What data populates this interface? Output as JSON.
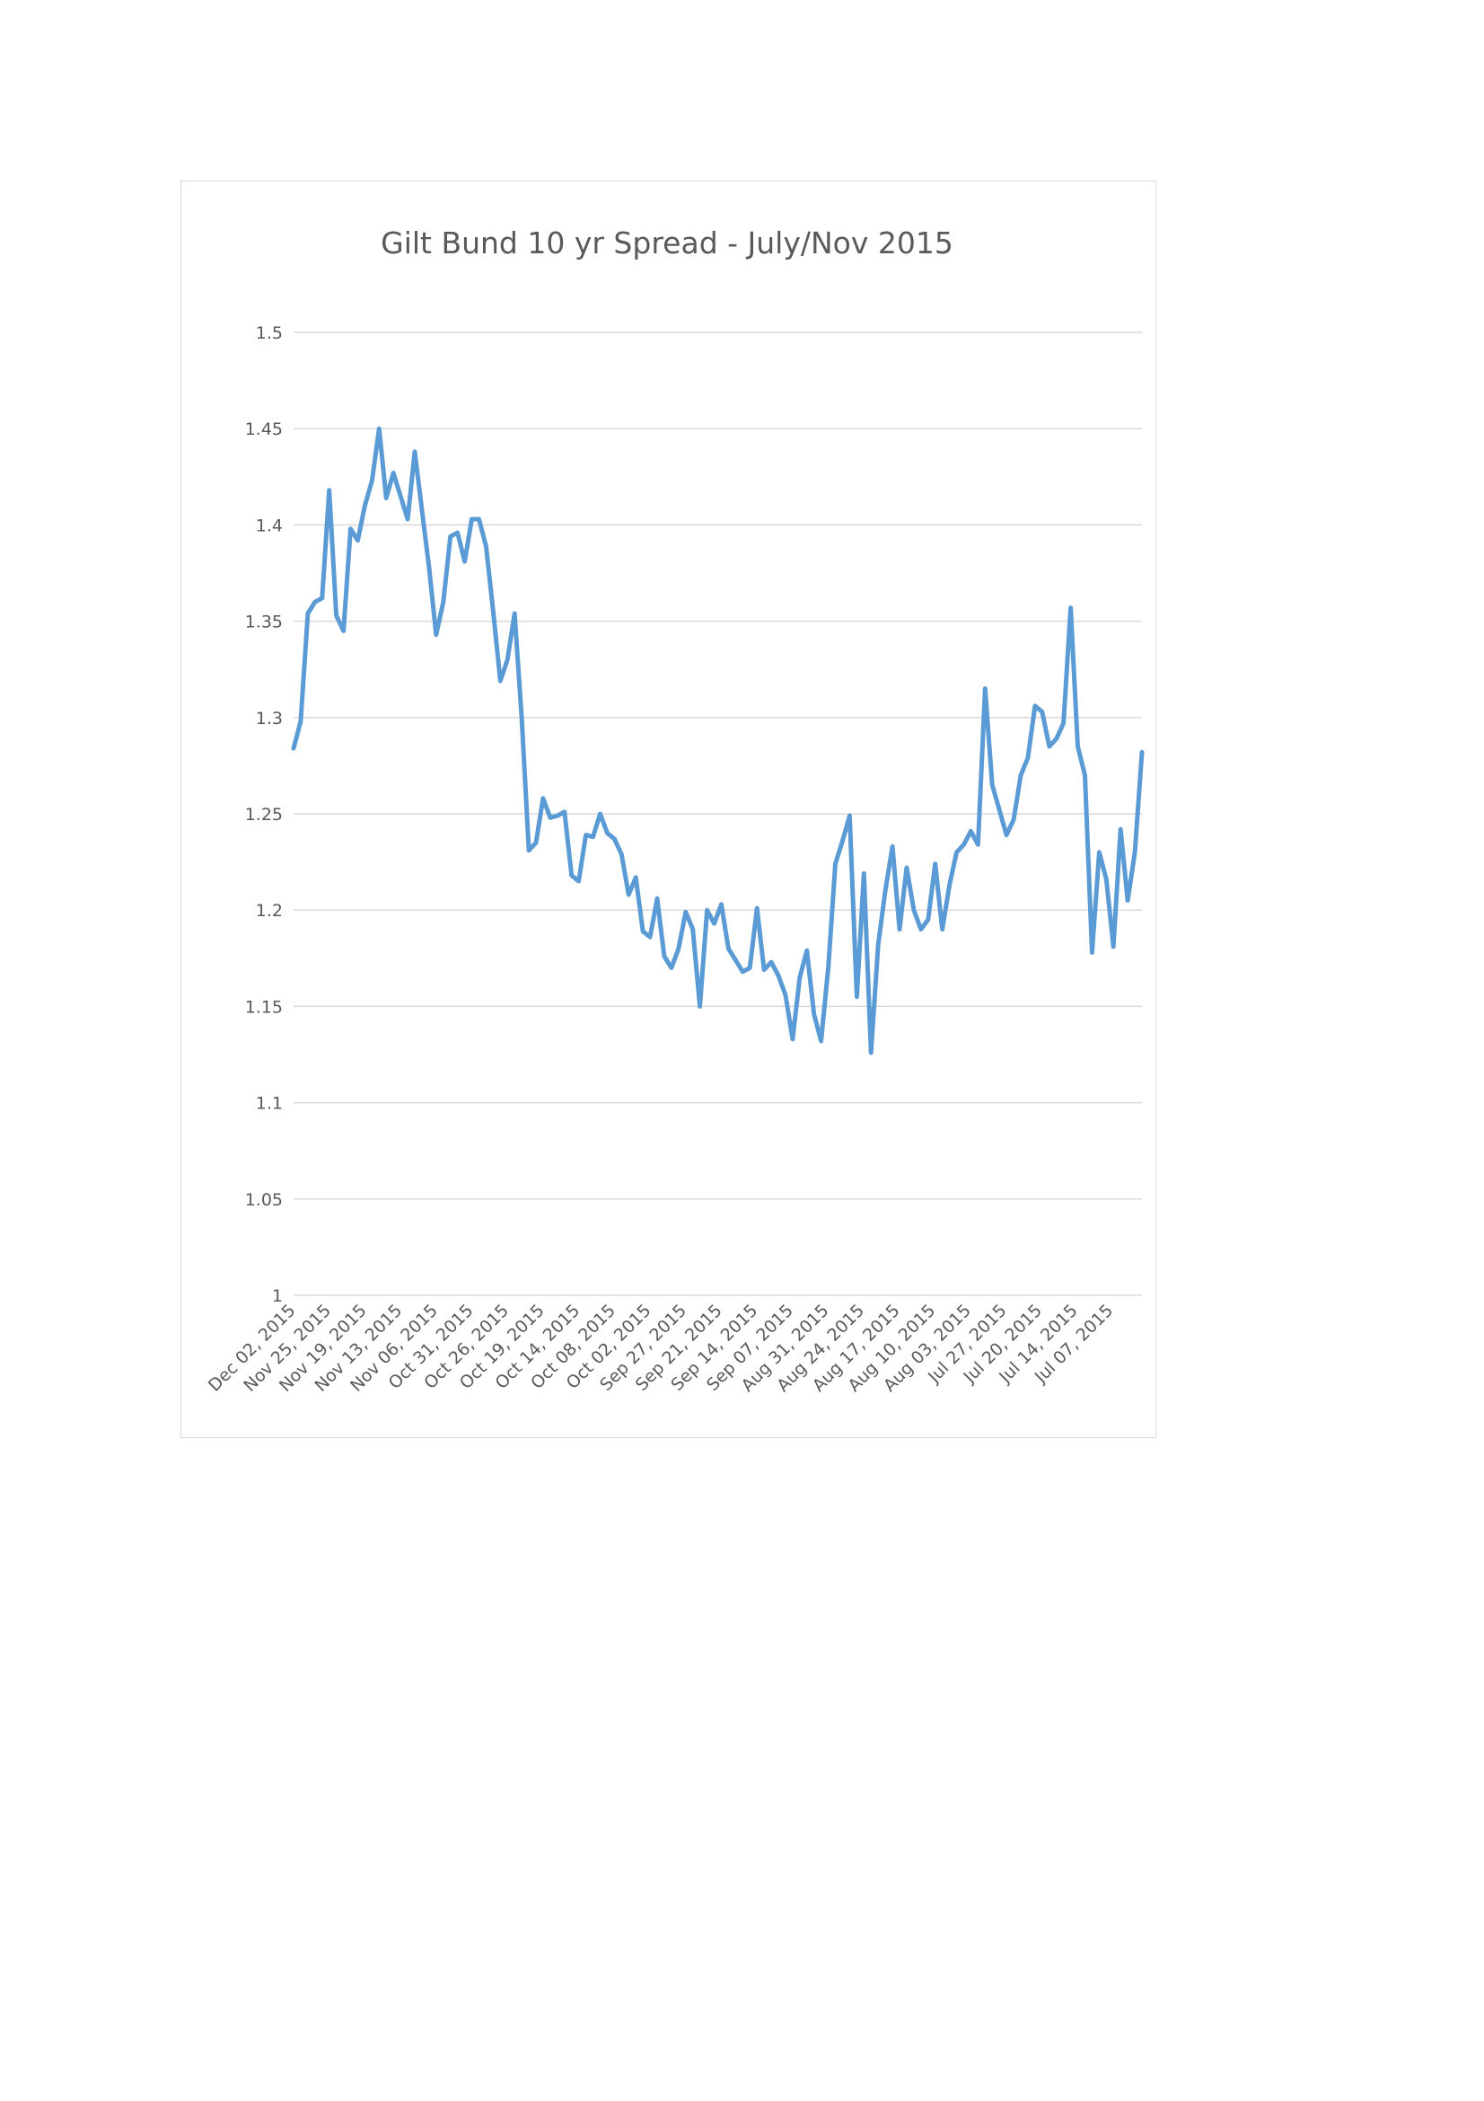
{
  "chart_data": {
    "type": "line",
    "title": "Gilt Bund 10 yr Spread - July/Nov 2015",
    "xlabel": "",
    "ylabel": "",
    "ylim": [
      1,
      1.5
    ],
    "y_ticks": [
      "1",
      "1.05",
      "1.1",
      "1.15",
      "1.2",
      "1.25",
      "1.3",
      "1.35",
      "1.4",
      "1.45",
      "1.5"
    ],
    "x_tick_labels": [
      "Dec 02, 2015",
      "Nov 25, 2015",
      "Nov 19, 2015",
      "Nov 13, 2015",
      "Nov 06, 2015",
      "Oct 31, 2015",
      "Oct 26, 2015",
      "Oct 19, 2015",
      "Oct 14, 2015",
      "Oct 08, 2015",
      "Oct 02, 2015",
      "Sep 27, 2015",
      "Sep 21, 2015",
      "Sep 14, 2015",
      "Sep 07, 2015",
      "Aug 31, 2015",
      "Aug 24, 2015",
      "Aug 17, 2015",
      "Aug 10, 2015",
      "Aug 03, 2015",
      "Jul 27, 2015",
      "Jul 20, 2015",
      "Jul 14, 2015",
      "Jul 07, 2015"
    ],
    "grid": true,
    "legend": "none",
    "series": [
      {
        "color": "#5b9bd5",
        "values": [
          1.284,
          1.298,
          1.354,
          1.36,
          1.362,
          1.418,
          1.353,
          1.345,
          1.398,
          1.392,
          1.41,
          1.423,
          1.45,
          1.414,
          1.427,
          1.415,
          1.403,
          1.438,
          1.408,
          1.378,
          1.343,
          1.36,
          1.394,
          1.396,
          1.381,
          1.403,
          1.403,
          1.389,
          1.355,
          1.319,
          1.33,
          1.354,
          1.3,
          1.231,
          1.235,
          1.258,
          1.248,
          1.249,
          1.251,
          1.218,
          1.215,
          1.239,
          1.238,
          1.25,
          1.24,
          1.237,
          1.229,
          1.208,
          1.217,
          1.189,
          1.186,
          1.206,
          1.176,
          1.17,
          1.18,
          1.199,
          1.19,
          1.15,
          1.2,
          1.193,
          1.203,
          1.18,
          1.174,
          1.168,
          1.17,
          1.201,
          1.169,
          1.173,
          1.166,
          1.156,
          1.133,
          1.165,
          1.179,
          1.146,
          1.132,
          1.17,
          1.224,
          1.236,
          1.249,
          1.155,
          1.219,
          1.126,
          1.182,
          1.21,
          1.233,
          1.19,
          1.222,
          1.2,
          1.19,
          1.195,
          1.224,
          1.19,
          1.213,
          1.23,
          1.234,
          1.241,
          1.234,
          1.315,
          1.265,
          1.252,
          1.239,
          1.247,
          1.27,
          1.279,
          1.306,
          1.303,
          1.285,
          1.289,
          1.297,
          1.357,
          1.285,
          1.27,
          1.178,
          1.23,
          1.216,
          1.181,
          1.242,
          1.205,
          1.23,
          1.282
        ]
      }
    ]
  }
}
